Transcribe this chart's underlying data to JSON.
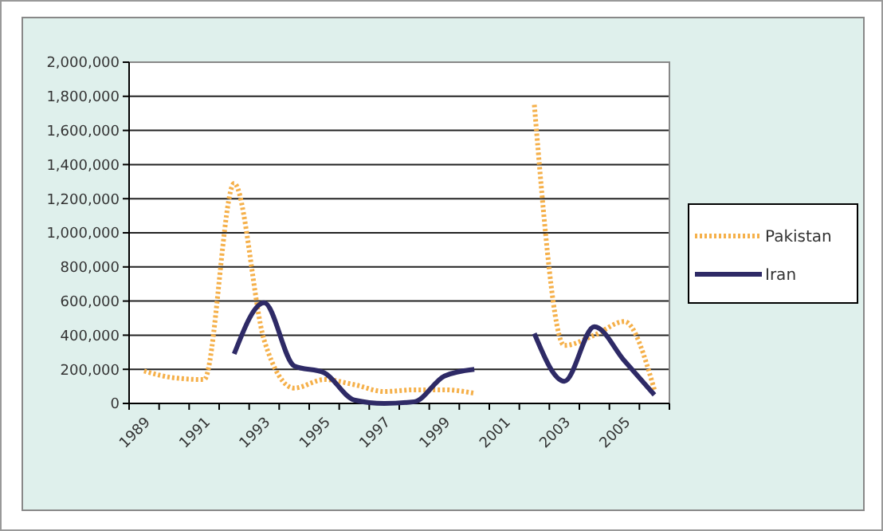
{
  "chart_data": {
    "type": "line",
    "categories": [
      "1989",
      null,
      "1991",
      null,
      "1993",
      null,
      "1995",
      null,
      "1997",
      null,
      "1999",
      null,
      "2001",
      null,
      "2003",
      null,
      "2005",
      null
    ],
    "series": [
      {
        "name": "Pakistan",
        "color": "#f5b04a",
        "line_style": "dotted",
        "values": [
          190000,
          150000,
          140000,
          1290000,
          370000,
          90000,
          140000,
          110000,
          70000,
          80000,
          80000,
          60000,
          null,
          1750000,
          340000,
          400000,
          480000,
          80000
        ]
      },
      {
        "name": "Iran",
        "color": "#2e2a66",
        "line_style": "solid",
        "values": [
          null,
          null,
          null,
          290000,
          590000,
          220000,
          180000,
          20000,
          0,
          10000,
          160000,
          200000,
          null,
          410000,
          130000,
          450000,
          250000,
          50000
        ]
      }
    ],
    "ylim": [
      0,
      2000000
    ],
    "yticks": [
      {
        "value": 0,
        "label": "0"
      },
      {
        "value": 200000,
        "label": "200,000"
      },
      {
        "value": 400000,
        "label": "400,000"
      },
      {
        "value": 600000,
        "label": "600,000"
      },
      {
        "value": 800000,
        "label": "800,000"
      },
      {
        "value": 1000000,
        "label": "1,000,000"
      },
      {
        "value": 1200000,
        "label": "1,200,000"
      },
      {
        "value": 1400000,
        "label": "1,400,000"
      },
      {
        "value": 1600000,
        "label": "1,600,000"
      },
      {
        "value": 1800000,
        "label": "1,800,000"
      },
      {
        "value": 2000000,
        "label": "2,000,000"
      }
    ],
    "grid": "y",
    "legend": "right"
  }
}
